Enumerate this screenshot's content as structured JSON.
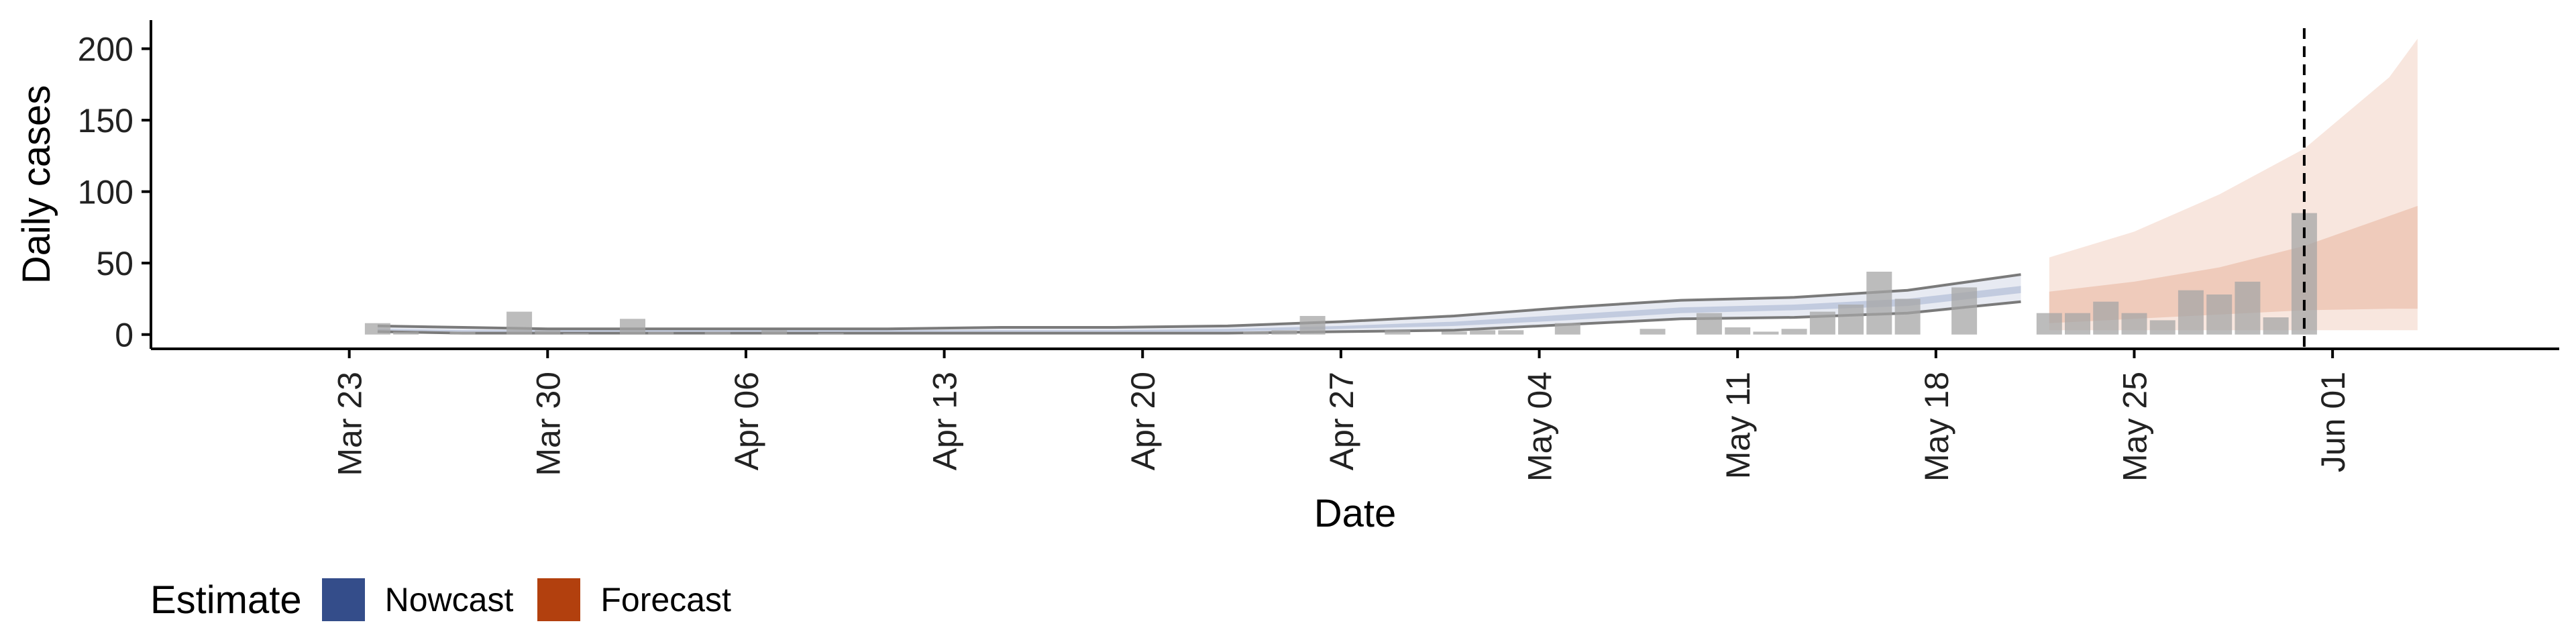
{
  "chart_data": {
    "type": "bar",
    "title": "",
    "xlabel": "Date",
    "ylabel": "Daily cases",
    "yticks": [
      0,
      50,
      100,
      150,
      200
    ],
    "ylim": [
      -10,
      220
    ],
    "xlim": [
      "2020-03-16",
      "2020-06-09"
    ],
    "xticks": [
      {
        "date": "2020-03-23",
        "label": "Mar 23"
      },
      {
        "date": "2020-03-30",
        "label": "Mar 30"
      },
      {
        "date": "2020-04-06",
        "label": "Apr 06"
      },
      {
        "date": "2020-04-13",
        "label": "Apr 13"
      },
      {
        "date": "2020-04-20",
        "label": "Apr 20"
      },
      {
        "date": "2020-04-27",
        "label": "Apr 27"
      },
      {
        "date": "2020-05-04",
        "label": "May 04"
      },
      {
        "date": "2020-05-11",
        "label": "May 11"
      },
      {
        "date": "2020-05-18",
        "label": "May 18"
      },
      {
        "date": "2020-05-25",
        "label": "May 25"
      },
      {
        "date": "2020-06-01",
        "label": "Jun 01"
      }
    ],
    "vline_date": "2020-05-31",
    "legend": {
      "title": "Estimate",
      "position": "bottom-left",
      "items": [
        {
          "label": "Nowcast",
          "color": "#344d8a"
        },
        {
          "label": "Forecast",
          "color": "#b2400e"
        }
      ]
    },
    "colors": {
      "bars": "#a6a6a6",
      "nowcast_band": "#b9c3da",
      "nowcast_outline": "#7a7a7a",
      "forecast_outer": "#f8e6de",
      "forecast_inner": "#efcbbb",
      "vline": "#000000",
      "axis": "#000000"
    },
    "bars": [
      {
        "date": "2020-03-24",
        "value": 8
      },
      {
        "date": "2020-03-25",
        "value": 2
      },
      {
        "date": "2020-03-27",
        "value": 2
      },
      {
        "date": "2020-03-29",
        "value": 16
      },
      {
        "date": "2020-03-30",
        "value": 3
      },
      {
        "date": "2020-03-31",
        "value": 1
      },
      {
        "date": "2020-04-02",
        "value": 11
      },
      {
        "date": "2020-04-03",
        "value": 2
      },
      {
        "date": "2020-04-05",
        "value": 2
      },
      {
        "date": "2020-04-07",
        "value": 3
      },
      {
        "date": "2020-04-09",
        "value": 1
      },
      {
        "date": "2020-04-24",
        "value": 2
      },
      {
        "date": "2020-04-25",
        "value": 3
      },
      {
        "date": "2020-04-26",
        "value": 13
      },
      {
        "date": "2020-04-29",
        "value": 3
      },
      {
        "date": "2020-05-01",
        "value": 2
      },
      {
        "date": "2020-05-02",
        "value": 3
      },
      {
        "date": "2020-05-03",
        "value": 3
      },
      {
        "date": "2020-05-05",
        "value": 8
      },
      {
        "date": "2020-05-08",
        "value": 4
      },
      {
        "date": "2020-05-10",
        "value": 15
      },
      {
        "date": "2020-05-11",
        "value": 5
      },
      {
        "date": "2020-05-12",
        "value": 2
      },
      {
        "date": "2020-05-13",
        "value": 4
      },
      {
        "date": "2020-05-14",
        "value": 16
      },
      {
        "date": "2020-05-15",
        "value": 21
      },
      {
        "date": "2020-05-16",
        "value": 44
      },
      {
        "date": "2020-05-17",
        "value": 25
      },
      {
        "date": "2020-05-19",
        "value": 33
      },
      {
        "date": "2020-05-22",
        "value": 15
      },
      {
        "date": "2020-05-23",
        "value": 15
      },
      {
        "date": "2020-05-24",
        "value": 23
      },
      {
        "date": "2020-05-25",
        "value": 15
      },
      {
        "date": "2020-05-26",
        "value": 10
      },
      {
        "date": "2020-05-27",
        "value": 31
      },
      {
        "date": "2020-05-28",
        "value": 28
      },
      {
        "date": "2020-05-29",
        "value": 37
      },
      {
        "date": "2020-05-30",
        "value": 12
      },
      {
        "date": "2020-05-31",
        "value": 85
      }
    ],
    "nowcast": {
      "dates": [
        "2020-03-24",
        "2020-03-27",
        "2020-03-30",
        "2020-04-03",
        "2020-04-07",
        "2020-04-11",
        "2020-04-15",
        "2020-04-19",
        "2020-04-23",
        "2020-04-27",
        "2020-05-01",
        "2020-05-05",
        "2020-05-09",
        "2020-05-13",
        "2020-05-17",
        "2020-05-21"
      ],
      "outer_upper": [
        6,
        5,
        4,
        4,
        4,
        4,
        5,
        5,
        6,
        9,
        13,
        19,
        24,
        26,
        31,
        42
      ],
      "outer_lower": [
        2,
        1,
        1,
        1,
        1,
        1,
        1,
        1,
        1,
        2,
        3,
        7,
        11,
        12,
        15,
        23
      ],
      "inner_upper": [
        4,
        3,
        3,
        3,
        3,
        3,
        3,
        3,
        4,
        6,
        9,
        14,
        19,
        21,
        25,
        34
      ],
      "inner_lower": [
        3,
        2,
        2,
        2,
        2,
        2,
        2,
        2,
        2,
        4,
        6,
        10,
        15,
        17,
        20,
        29
      ]
    },
    "forecast": {
      "dates": [
        "2020-05-22",
        "2020-05-25",
        "2020-05-28",
        "2020-05-31",
        "2020-06-03",
        "2020-06-04"
      ],
      "outer_upper": [
        54,
        72,
        98,
        130,
        180,
        207
      ],
      "outer_lower": [
        3,
        3,
        3,
        3,
        3,
        3
      ],
      "inner_upper": [
        30,
        37,
        47,
        62,
        83,
        90
      ],
      "inner_lower": [
        8,
        11,
        14,
        17,
        18,
        18
      ]
    }
  }
}
